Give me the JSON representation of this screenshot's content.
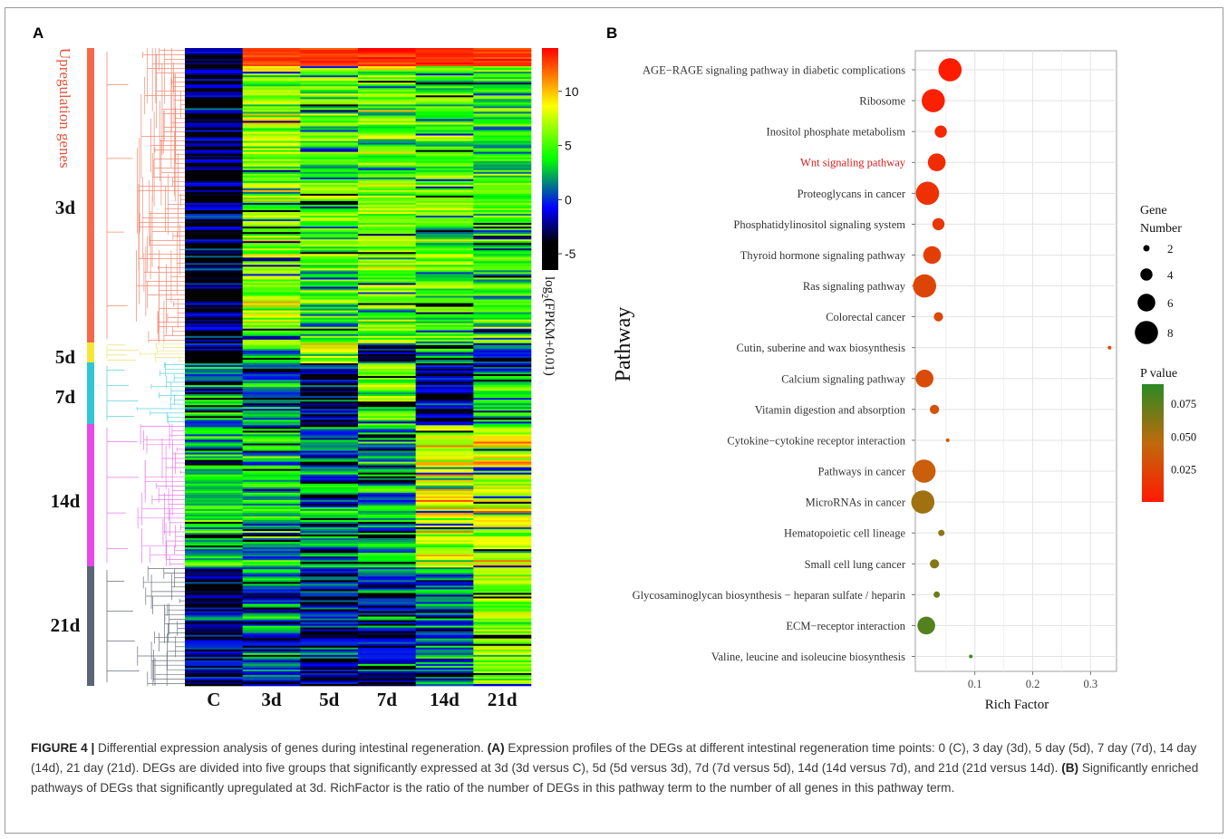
{
  "panelA": {
    "label": "A",
    "upregulation_label": "Upregulation genes",
    "groups": [
      {
        "label": "3d",
        "color": "#f4684c",
        "rows": [
          0,
          0.6437
        ]
      },
      {
        "label": "5d",
        "color": "#f6e63a",
        "rows": [
          0.6437,
          0.6837
        ]
      },
      {
        "label": "7d",
        "color": "#2fc6d6",
        "rows": [
          0.6837,
          0.8047
        ]
      },
      {
        "label": "14d",
        "color": "#e64ae6",
        "rows": [
          0.8047,
          1.0
        ]
      },
      {
        "label": "21d",
        "color": "#5c6478",
        "rows": [
          1.0,
          1.0
        ]
      }
    ],
    "columns": [
      "C",
      "3d",
      "5d",
      "7d",
      "14d",
      "21d"
    ],
    "colorbar": {
      "ticks": [
        10,
        5,
        0,
        -5
      ],
      "range": [
        -6.5,
        14
      ],
      "title_main": "log",
      "title_sub": "2",
      "title_rest": "(FPKM+0.01)",
      "colors": [
        "#000000",
        "#0000ff",
        "#00ff00",
        "#ffff00",
        "#ff0000"
      ]
    }
  },
  "panelB": {
    "label": "B",
    "y_title": "Pathway",
    "x_title": "Rich Factor",
    "x_ticks": [
      "0.1",
      "0.2",
      "0.3"
    ],
    "highlight_color": "#d81e1e",
    "size_legend": {
      "title_line1": "Gene",
      "title_line2": "Number",
      "values": [
        "2",
        "4",
        "6",
        "8"
      ]
    },
    "color_legend": {
      "title": "P value",
      "ticks": [
        "0.075",
        "0.050",
        "0.025"
      ],
      "range": [
        0,
        0.09
      ]
    }
  },
  "chart_data": {
    "type": "scatter",
    "x_label": "Rich Factor",
    "y_label": "Pathway",
    "xlim": [
      0,
      0.35
    ],
    "points": [
      {
        "pathway": "AGE−RAGE signaling pathway in diabetic complications",
        "rich": 0.057,
        "genes": 8,
        "p": 0.001
      },
      {
        "pathway": "Ribosome",
        "rich": 0.028,
        "genes": 8,
        "p": 0.004
      },
      {
        "pathway": "Inositol phosphate metabolism",
        "rich": 0.041,
        "genes": 4,
        "p": 0.008
      },
      {
        "pathway": "Wnt signaling pathway",
        "rich": 0.034,
        "genes": 6,
        "p": 0.01,
        "highlight": true
      },
      {
        "pathway": "Proteoglycans in cancer",
        "rich": 0.018,
        "genes": 8,
        "p": 0.013
      },
      {
        "pathway": "Phosphatidylinositol signaling system",
        "rich": 0.037,
        "genes": 4,
        "p": 0.016
      },
      {
        "pathway": "Thyroid hormone signaling pathway",
        "rich": 0.026,
        "genes": 6,
        "p": 0.02
      },
      {
        "pathway": "Ras signaling pathway",
        "rich": 0.013,
        "genes": 8,
        "p": 0.024
      },
      {
        "pathway": "Colorectal cancer",
        "rich": 0.037,
        "genes": 3,
        "p": 0.026
      },
      {
        "pathway": "Cutin, suberine and wax biosynthesis",
        "rich": 0.333,
        "genes": 1,
        "p": 0.027
      },
      {
        "pathway": "Calcium signaling pathway",
        "rich": 0.013,
        "genes": 6,
        "p": 0.028
      },
      {
        "pathway": "Vitamin digestion and absorption",
        "rich": 0.03,
        "genes": 3,
        "p": 0.031
      },
      {
        "pathway": "Cytokine−cytokine receptor interaction",
        "rich": 0.053,
        "genes": 1,
        "p": 0.034
      },
      {
        "pathway": "Pathways in cancer",
        "rich": 0.012,
        "genes": 8,
        "p": 0.038
      },
      {
        "pathway": "MicroRNAs in cancer",
        "rich": 0.01,
        "genes": 8,
        "p": 0.055
      },
      {
        "pathway": "Hematopoietic cell lineage",
        "rich": 0.042,
        "genes": 2,
        "p": 0.06
      },
      {
        "pathway": "Small cell lung cancer",
        "rich": 0.03,
        "genes": 3,
        "p": 0.064
      },
      {
        "pathway": "Glycosaminoglycan biosynthesis − heparan sulfate / heparin",
        "rich": 0.034,
        "genes": 2,
        "p": 0.07
      },
      {
        "pathway": "ECM−receptor interaction",
        "rich": 0.016,
        "genes": 6,
        "p": 0.078
      },
      {
        "pathway": "Valine, leucine and isoleucine biosynthesis",
        "rich": 0.093,
        "genes": 1,
        "p": 0.082
      }
    ]
  },
  "caption": {
    "lead": "FIGURE 4 |",
    "intro": " Differential expression analysis of genes during intestinal regeneration. ",
    "a_label": "(A)",
    "a_text": " Expression profiles of the DEGs at different intestinal regeneration time points: 0 (C), 3 day (3d), 5 day (5d), 7 day (7d), 14 day (14d), 21 day (21d). DEGs are divided into five groups that significantly expressed at 3d (3d versus C), 5d (5d versus 3d), 7d (7d versus 5d), 14d (14d versus 7d), and 21d (21d versus 14d). ",
    "b_label": "(B)",
    "b_text": " Significantly enriched pathways of DEGs that significantly upregulated at 3d. RichFactor is the ratio of the number of DEGs in this pathway term to the number of all genes in this pathway term."
  }
}
